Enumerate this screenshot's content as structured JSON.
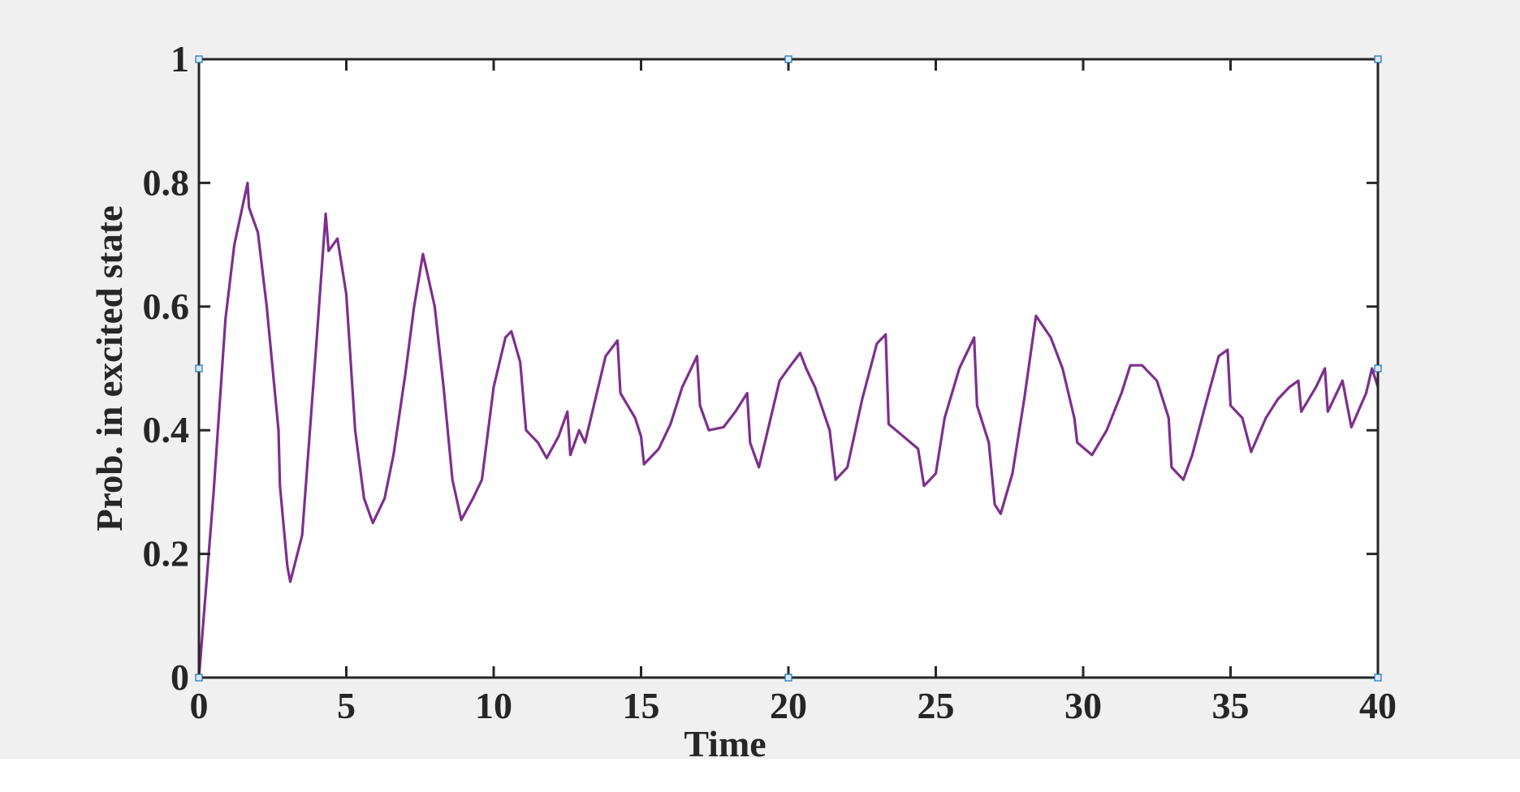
{
  "chart_data": {
    "type": "line",
    "xlabel": "Time",
    "ylabel": "Prob. in excited state",
    "x": [
      0,
      0.5,
      0.9,
      1.2,
      1.65,
      1.7,
      2.0,
      2.3,
      2.7,
      2.75,
      3.0,
      3.1,
      3.5,
      4.0,
      4.3,
      4.4,
      4.7,
      5.0,
      5.3,
      5.6,
      5.9,
      6.3,
      6.6,
      7.0,
      7.3,
      7.6,
      8.0,
      8.3,
      8.6,
      8.9,
      9.3,
      9.6,
      10.0,
      10.4,
      10.6,
      10.9,
      11.1,
      11.5,
      11.8,
      12.2,
      12.5,
      12.6,
      12.9,
      13.1,
      13.5,
      13.8,
      14.2,
      14.3,
      14.8,
      15.0,
      15.1,
      15.6,
      16.0,
      16.4,
      16.9,
      17.0,
      17.3,
      17.8,
      18.2,
      18.6,
      18.7,
      19.0,
      19.4,
      19.7,
      20.0,
      20.4,
      20.6,
      20.9,
      21.4,
      21.6,
      22.0,
      22.5,
      23.0,
      23.3,
      23.4,
      23.9,
      24.4,
      24.6,
      25.0,
      25.3,
      25.8,
      26.3,
      26.4,
      26.8,
      27.0,
      27.2,
      27.6,
      28.0,
      28.4,
      28.9,
      29.3,
      29.7,
      29.8,
      30.3,
      30.8,
      31.3,
      31.6,
      32.0,
      32.5,
      32.9,
      33.0,
      33.4,
      33.7,
      34.2,
      34.6,
      34.9,
      35.0,
      35.4,
      35.7,
      36.2,
      36.6,
      37.0,
      37.3,
      37.4,
      37.9,
      38.2,
      38.3,
      38.8,
      39.1,
      39.6,
      39.8,
      40
    ],
    "series": [
      {
        "color": "#7e2f8e",
        "values": [
          0,
          0.3,
          0.58,
          0.7,
          0.8,
          0.76,
          0.72,
          0.6,
          0.4,
          0.31,
          0.18,
          0.155,
          0.23,
          0.55,
          0.75,
          0.69,
          0.71,
          0.62,
          0.4,
          0.29,
          0.25,
          0.29,
          0.36,
          0.49,
          0.6,
          0.685,
          0.6,
          0.47,
          0.32,
          0.255,
          0.29,
          0.32,
          0.47,
          0.55,
          0.56,
          0.51,
          0.4,
          0.38,
          0.355,
          0.39,
          0.43,
          0.36,
          0.4,
          0.38,
          0.46,
          0.52,
          0.545,
          0.46,
          0.42,
          0.39,
          0.345,
          0.37,
          0.41,
          0.47,
          0.52,
          0.44,
          0.4,
          0.405,
          0.43,
          0.46,
          0.38,
          0.34,
          0.42,
          0.48,
          0.5,
          0.525,
          0.5,
          0.47,
          0.4,
          0.32,
          0.34,
          0.45,
          0.54,
          0.555,
          0.41,
          0.39,
          0.37,
          0.31,
          0.33,
          0.42,
          0.5,
          0.55,
          0.44,
          0.38,
          0.28,
          0.265,
          0.33,
          0.45,
          0.585,
          0.55,
          0.5,
          0.42,
          0.38,
          0.36,
          0.4,
          0.46,
          0.505,
          0.505,
          0.48,
          0.42,
          0.34,
          0.32,
          0.36,
          0.45,
          0.52,
          0.53,
          0.44,
          0.42,
          0.365,
          0.42,
          0.45,
          0.47,
          0.48,
          0.43,
          0.47,
          0.5,
          0.43,
          0.48,
          0.405,
          0.46,
          0.5,
          0.47
        ]
      }
    ],
    "xlim": [
      0,
      40
    ],
    "xticks": [
      0,
      5,
      10,
      15,
      20,
      25,
      30,
      35,
      40
    ],
    "ylim": [
      0,
      1
    ],
    "yticks": [
      0,
      0.2,
      0.4,
      0.6,
      0.8,
      1
    ],
    "grid": false
  }
}
